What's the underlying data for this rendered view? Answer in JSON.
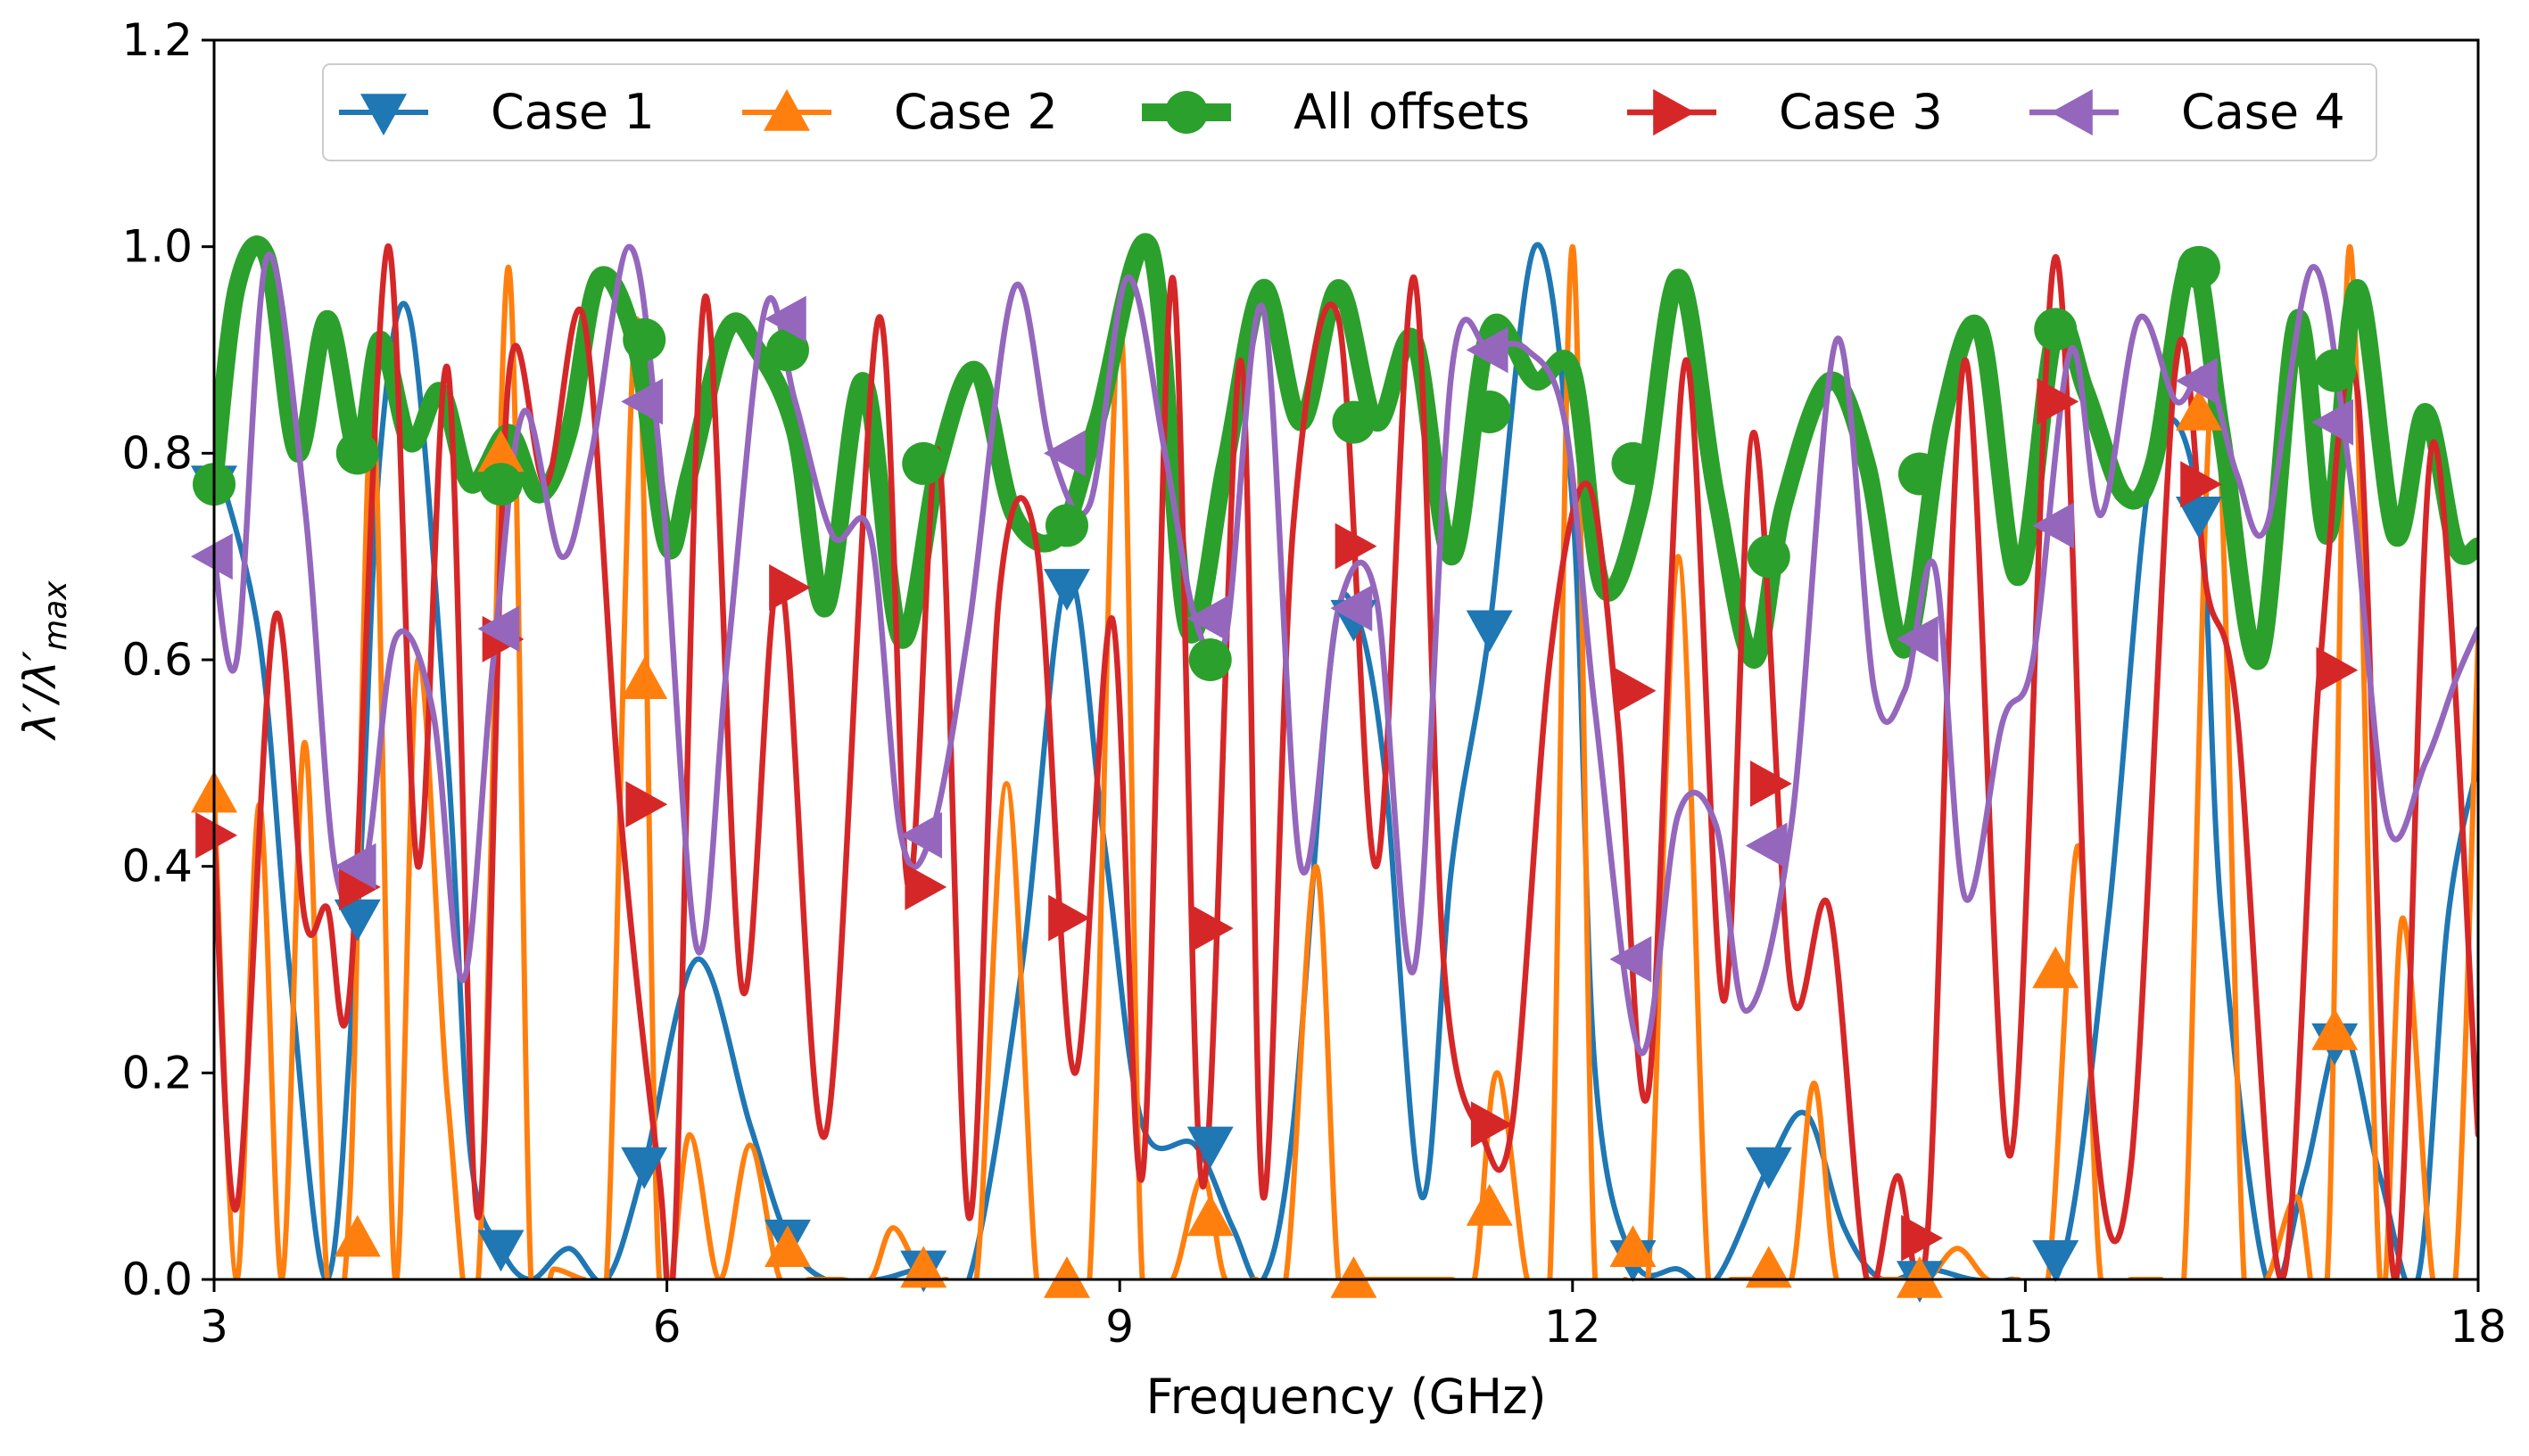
{
  "chart_data": {
    "type": "line",
    "xlabel": "Frequency (GHz)",
    "ylabel": "λ′/λ′max",
    "ylabel_main": "λ′/λ′",
    "ylabel_sub": "max",
    "xlim": [
      3,
      18
    ],
    "ylim": [
      0.0,
      1.2
    ],
    "xticks": [
      3,
      6,
      9,
      12,
      15,
      18
    ],
    "yticks": [
      0.0,
      0.2,
      0.4,
      0.6,
      0.8,
      1.0,
      1.2
    ],
    "xtick_labels": [
      "3",
      "6",
      "9",
      "12",
      "15",
      "18"
    ],
    "ytick_labels": [
      "0.0",
      "0.2",
      "0.4",
      "0.6",
      "0.8",
      "1.0",
      "1.2"
    ],
    "grid": false,
    "legend_position": "top-center",
    "legend_order": [
      "Case 1",
      "Case 2",
      "All offsets",
      "Case 3",
      "Case 4"
    ],
    "series": [
      {
        "name": "Case 1",
        "color": "#1f77b4",
        "marker": "triangle-down",
        "linewidth": "thin",
        "x": [
          3.0,
          3.3,
          3.5,
          3.75,
          3.95,
          4.1,
          4.3,
          4.55,
          4.7,
          4.9,
          5.1,
          5.35,
          5.6,
          5.85,
          6.2,
          6.55,
          6.8,
          7.05,
          7.4,
          7.7,
          8.0,
          8.35,
          8.65,
          8.9,
          9.15,
          9.5,
          9.75,
          9.95,
          10.15,
          10.4,
          10.55,
          10.75,
          11.0,
          11.2,
          11.45,
          11.75,
          12.0,
          12.15,
          12.4,
          12.7,
          12.95,
          13.3,
          13.55,
          13.8,
          14.05,
          14.35,
          14.65,
          14.9,
          15.25,
          15.55,
          15.85,
          16.15,
          16.3,
          16.6,
          16.85,
          17.1,
          17.35,
          17.6,
          17.8,
          18.0
        ],
        "y": [
          0.8,
          0.62,
          0.3,
          0.0,
          0.35,
          0.8,
          0.93,
          0.5,
          0.12,
          0.03,
          0.0,
          0.03,
          0.0,
          0.11,
          0.31,
          0.15,
          0.04,
          0.0,
          0.0,
          0.01,
          0.0,
          0.3,
          0.68,
          0.42,
          0.15,
          0.13,
          0.05,
          0.0,
          0.15,
          0.6,
          0.65,
          0.5,
          0.08,
          0.4,
          0.63,
          1.0,
          0.75,
          0.2,
          0.02,
          0.01,
          0.0,
          0.11,
          0.16,
          0.05,
          0.0,
          0.01,
          0.0,
          0.0,
          0.02,
          0.35,
          0.8,
          0.75,
          0.35,
          0.0,
          0.1,
          0.24,
          0.1,
          0.0,
          0.35,
          0.5
        ],
        "marker_x": [
          3.0,
          3.95,
          4.9,
          5.85,
          6.8,
          7.7,
          8.65,
          9.6,
          10.55,
          11.45,
          12.4,
          13.3,
          14.3,
          15.2,
          16.15,
          17.05
        ],
        "marker_y": [
          0.77,
          0.35,
          0.03,
          0.11,
          0.04,
          0.01,
          0.67,
          0.13,
          0.64,
          0.63,
          0.02,
          0.11,
          0.0,
          0.02,
          0.74,
          0.23
        ]
      },
      {
        "name": "Case 2",
        "color": "#ff7f0e",
        "marker": "triangle-up",
        "linewidth": "thin",
        "x": [
          3.0,
          3.15,
          3.3,
          3.45,
          3.6,
          3.75,
          3.9,
          4.05,
          4.2,
          4.35,
          4.55,
          4.75,
          4.95,
          5.1,
          5.25,
          5.45,
          5.6,
          5.8,
          5.95,
          6.15,
          6.35,
          6.55,
          6.75,
          6.95,
          7.15,
          7.35,
          7.5,
          7.7,
          7.85,
          8.05,
          8.25,
          8.45,
          8.6,
          8.8,
          9.0,
          9.15,
          9.35,
          9.55,
          9.7,
          9.9,
          10.1,
          10.3,
          10.45,
          10.6,
          10.8,
          11.0,
          11.2,
          11.35,
          11.5,
          11.7,
          11.85,
          12.0,
          12.15,
          12.35,
          12.5,
          12.7,
          12.9,
          13.05,
          13.25,
          13.45,
          13.6,
          13.75,
          13.95,
          14.15,
          14.35,
          14.55,
          14.75,
          14.95,
          15.15,
          15.35,
          15.5,
          15.7,
          15.9,
          16.05,
          16.25,
          16.45,
          16.6,
          16.8,
          17.0,
          17.15,
          17.35,
          17.5,
          17.7,
          17.85,
          18.0
        ],
        "y": [
          0.47,
          0.0,
          0.46,
          0.0,
          0.52,
          0.0,
          0.08,
          0.85,
          0.0,
          0.6,
          0.17,
          0.0,
          0.98,
          0.0,
          0.01,
          0.0,
          0.0,
          0.93,
          0.0,
          0.14,
          0.0,
          0.13,
          0.0,
          0.0,
          0.0,
          0.0,
          0.05,
          0.0,
          0.0,
          0.0,
          0.48,
          0.0,
          0.0,
          0.0,
          0.93,
          0.0,
          0.0,
          0.1,
          0.0,
          0.0,
          0.0,
          0.4,
          0.0,
          0.0,
          0.0,
          0.0,
          0.0,
          0.0,
          0.2,
          0.0,
          0.0,
          1.0,
          0.0,
          0.0,
          0.0,
          0.7,
          0.0,
          0.0,
          0.0,
          0.0,
          0.19,
          0.0,
          0.0,
          0.0,
          0.0,
          0.03,
          0.0,
          0.0,
          0.0,
          0.42,
          0.0,
          0.0,
          0.0,
          0.0,
          0.88,
          0.0,
          0.0,
          0.08,
          0.0,
          1.0,
          0.0,
          0.35,
          0.0,
          0.0,
          0.62
        ],
        "marker_x": [
          3.0,
          3.95,
          4.9,
          5.85,
          6.8,
          7.7,
          8.65,
          9.6,
          10.55,
          11.45,
          12.4,
          13.3,
          14.3,
          15.2,
          16.15,
          17.05
        ],
        "marker_y": [
          0.47,
          0.04,
          0.8,
          0.58,
          0.03,
          0.01,
          0.0,
          0.06,
          0.0,
          0.07,
          0.03,
          0.01,
          0.0,
          0.3,
          0.84,
          0.24
        ]
      },
      {
        "name": "All offsets",
        "color": "#2ca02c",
        "marker": "circle",
        "linewidth": "thick",
        "x": [
          3.0,
          3.15,
          3.35,
          3.55,
          3.75,
          3.95,
          4.1,
          4.3,
          4.5,
          4.7,
          4.95,
          5.15,
          5.35,
          5.55,
          5.8,
          6.0,
          6.15,
          6.4,
          6.6,
          6.85,
          7.05,
          7.3,
          7.55,
          7.8,
          8.05,
          8.3,
          8.6,
          8.85,
          9.2,
          9.45,
          9.7,
          9.95,
          10.2,
          10.45,
          10.7,
          10.95,
          11.2,
          11.45,
          11.75,
          12.0,
          12.2,
          12.45,
          12.7,
          12.95,
          13.2,
          13.4,
          13.7,
          13.95,
          14.2,
          14.45,
          14.7,
          14.95,
          15.2,
          15.4,
          15.65,
          15.85,
          16.1,
          16.3,
          16.55,
          16.8,
          17.0,
          17.2,
          17.45,
          17.65,
          17.85,
          18.0
        ],
        "y": [
          0.77,
          0.96,
          0.99,
          0.8,
          0.93,
          0.8,
          0.91,
          0.81,
          0.86,
          0.77,
          0.82,
          0.76,
          0.82,
          0.97,
          0.9,
          0.71,
          0.78,
          0.92,
          0.9,
          0.82,
          0.65,
          0.87,
          0.62,
          0.79,
          0.88,
          0.74,
          0.72,
          0.83,
          1.0,
          0.63,
          0.79,
          0.96,
          0.83,
          0.96,
          0.83,
          0.91,
          0.7,
          0.92,
          0.87,
          0.88,
          0.67,
          0.75,
          0.97,
          0.76,
          0.6,
          0.75,
          0.87,
          0.79,
          0.61,
          0.83,
          0.92,
          0.68,
          0.92,
          0.86,
          0.76,
          0.79,
          0.99,
          0.82,
          0.6,
          0.93,
          0.72,
          0.96,
          0.72,
          0.84,
          0.71,
          0.71
        ],
        "marker_x": [
          3.0,
          3.95,
          4.9,
          5.85,
          6.8,
          7.7,
          8.65,
          9.6,
          10.55,
          11.45,
          12.4,
          13.3,
          14.3,
          15.2,
          16.15,
          17.05
        ],
        "marker_y": [
          0.77,
          0.8,
          0.77,
          0.91,
          0.9,
          0.79,
          0.73,
          0.6,
          0.83,
          0.84,
          0.79,
          0.7,
          0.78,
          0.92,
          0.98,
          0.88
        ]
      },
      {
        "name": "Case 3",
        "color": "#d62728",
        "marker": "triangle-right",
        "linewidth": "medium",
        "x": [
          3.0,
          3.15,
          3.4,
          3.6,
          3.75,
          3.9,
          4.15,
          4.35,
          4.55,
          4.75,
          4.95,
          5.2,
          5.45,
          5.7,
          5.95,
          6.05,
          6.25,
          6.5,
          6.75,
          7.05,
          7.4,
          7.6,
          7.8,
          8.0,
          8.2,
          8.45,
          8.7,
          8.95,
          9.15,
          9.35,
          9.55,
          9.8,
          9.95,
          10.15,
          10.45,
          10.7,
          10.95,
          11.15,
          11.4,
          11.6,
          11.85,
          12.1,
          12.3,
          12.5,
          12.75,
          13.0,
          13.2,
          13.45,
          13.7,
          13.95,
          14.15,
          14.35,
          14.6,
          14.9,
          15.2,
          15.45,
          15.7,
          16.0,
          16.2,
          16.4,
          16.7,
          16.95,
          17.2,
          17.45,
          17.7,
          18.0
        ],
        "y": [
          0.43,
          0.07,
          0.64,
          0.35,
          0.36,
          0.28,
          1.0,
          0.4,
          0.88,
          0.06,
          0.87,
          0.77,
          0.93,
          0.44,
          0.1,
          0.03,
          0.95,
          0.28,
          0.68,
          0.14,
          0.93,
          0.38,
          0.8,
          0.06,
          0.66,
          0.71,
          0.2,
          0.64,
          0.1,
          0.97,
          0.09,
          0.89,
          0.08,
          0.73,
          0.93,
          0.4,
          0.97,
          0.3,
          0.14,
          0.15,
          0.6,
          0.77,
          0.54,
          0.18,
          0.89,
          0.27,
          0.82,
          0.28,
          0.36,
          0.0,
          0.1,
          0.04,
          0.89,
          0.12,
          0.99,
          0.17,
          0.11,
          0.89,
          0.67,
          0.55,
          0.0,
          0.59,
          0.86,
          0.0,
          0.81,
          0.14
        ],
        "marker_x": [
          3.0,
          3.95,
          4.9,
          5.85,
          6.8,
          7.7,
          8.65,
          9.6,
          10.55,
          11.45,
          12.4,
          13.3,
          14.3,
          15.2,
          16.15,
          17.05
        ],
        "marker_y": [
          0.43,
          0.38,
          0.62,
          0.46,
          0.67,
          0.38,
          0.35,
          0.34,
          0.71,
          0.15,
          0.57,
          0.48,
          0.04,
          0.85,
          0.77,
          0.59
        ]
      },
      {
        "name": "Case 4",
        "color": "#9467bd",
        "marker": "triangle-left",
        "linewidth": "medium",
        "x": [
          3.0,
          3.15,
          3.35,
          3.6,
          3.8,
          4.0,
          4.2,
          4.45,
          4.65,
          4.85,
          5.05,
          5.3,
          5.5,
          5.75,
          5.95,
          6.2,
          6.4,
          6.65,
          6.85,
          7.1,
          7.35,
          7.55,
          7.75,
          8.0,
          8.3,
          8.55,
          8.8,
          9.05,
          9.3,
          9.5,
          9.7,
          9.95,
          10.2,
          10.45,
          10.7,
          10.95,
          11.2,
          11.45,
          11.7,
          11.95,
          12.15,
          12.45,
          12.7,
          12.95,
          13.15,
          13.45,
          13.75,
          14.0,
          14.2,
          14.4,
          14.6,
          14.85,
          15.05,
          15.3,
          15.5,
          15.75,
          16.0,
          16.2,
          16.4,
          16.6,
          16.9,
          17.15,
          17.4,
          17.65,
          17.85,
          18.0
        ],
        "y": [
          0.7,
          0.6,
          0.99,
          0.75,
          0.4,
          0.4,
          0.62,
          0.55,
          0.29,
          0.6,
          0.84,
          0.7,
          0.8,
          1.0,
          0.8,
          0.32,
          0.6,
          0.94,
          0.85,
          0.72,
          0.72,
          0.43,
          0.43,
          0.63,
          0.96,
          0.8,
          0.75,
          0.97,
          0.8,
          0.64,
          0.62,
          0.94,
          0.4,
          0.65,
          0.66,
          0.3,
          0.88,
          0.9,
          0.9,
          0.83,
          0.55,
          0.22,
          0.45,
          0.44,
          0.26,
          0.44,
          0.91,
          0.57,
          0.57,
          0.69,
          0.37,
          0.54,
          0.6,
          0.9,
          0.74,
          0.93,
          0.85,
          0.88,
          0.78,
          0.73,
          0.98,
          0.78,
          0.44,
          0.5,
          0.58,
          0.63
        ],
        "marker_x": [
          3.0,
          3.95,
          4.9,
          5.85,
          6.8,
          7.7,
          8.65,
          9.6,
          10.55,
          11.45,
          12.4,
          13.3,
          14.3,
          15.2,
          16.15,
          17.05
        ],
        "marker_y": [
          0.7,
          0.4,
          0.63,
          0.85,
          0.93,
          0.43,
          0.8,
          0.64,
          0.65,
          0.9,
          0.31,
          0.42,
          0.62,
          0.73,
          0.87,
          0.83
        ]
      }
    ]
  }
}
